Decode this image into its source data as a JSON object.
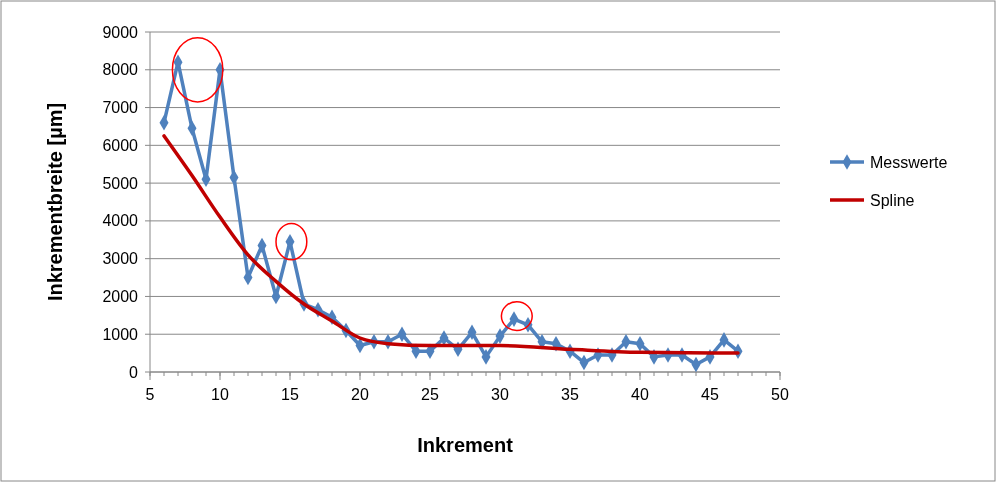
{
  "chart_data": {
    "type": "line",
    "xlabel": "Inkrement",
    "ylabel": "Inkrementbreite [µm]",
    "xlim": [
      5,
      50
    ],
    "xticks": [
      5,
      10,
      15,
      20,
      25,
      30,
      35,
      40,
      45,
      50
    ],
    "ylim": [
      0,
      9000
    ],
    "yticks": [
      0,
      1000,
      2000,
      3000,
      4000,
      5000,
      6000,
      7000,
      8000,
      9000
    ],
    "grid": "y",
    "legend": "right",
    "series": [
      {
        "name": "Messwerte",
        "color": "#4f81bd",
        "marker": "diamond",
        "x": [
          6,
          7,
          8,
          9,
          10,
          11,
          12,
          13,
          14,
          15,
          16,
          17,
          18,
          19,
          20,
          21,
          22,
          23,
          24,
          25,
          26,
          27,
          28,
          29,
          30,
          31,
          32,
          33,
          34,
          35,
          36,
          37,
          38,
          39,
          40,
          41,
          42,
          43,
          44,
          45,
          46,
          47
        ],
        "values": [
          6600,
          8200,
          6450,
          5100,
          8000,
          5150,
          2500,
          3350,
          2000,
          3450,
          1800,
          1650,
          1450,
          1100,
          700,
          800,
          800,
          1000,
          550,
          550,
          900,
          600,
          1050,
          400,
          950,
          1400,
          1250,
          800,
          750,
          550,
          250,
          450,
          450,
          800,
          750,
          400,
          450,
          450,
          200,
          400,
          850,
          550
        ]
      },
      {
        "name": "Spline",
        "color": "#c00000",
        "marker": "none",
        "x": [
          6,
          8,
          10,
          12,
          14,
          16,
          18,
          20,
          22,
          25,
          30,
          35,
          40,
          47
        ],
        "values": [
          6250,
          5200,
          4100,
          3100,
          2400,
          1800,
          1350,
          900,
          750,
          700,
          700,
          600,
          520,
          500
        ]
      }
    ]
  }
}
